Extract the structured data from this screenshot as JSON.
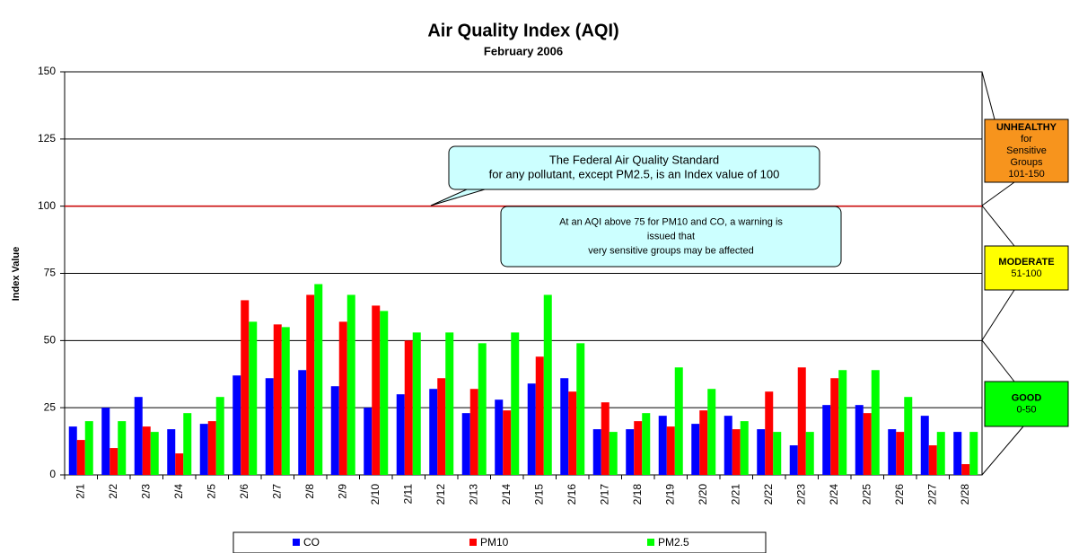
{
  "chart_data": {
    "type": "bar",
    "title": "Air Quality Index  (AQI)",
    "subtitle": "February 2006",
    "y_label": "Index Value",
    "categories": [
      "2/1",
      "2/2",
      "2/3",
      "2/4",
      "2/5",
      "2/6",
      "2/7",
      "2/8",
      "2/9",
      "2/10",
      "2/11",
      "2/12",
      "2/13",
      "2/14",
      "2/15",
      "2/16",
      "2/17",
      "2/18",
      "2/19",
      "2/20",
      "2/21",
      "2/22",
      "2/23",
      "2/24",
      "2/25",
      "2/26",
      "2/27",
      "2/28"
    ],
    "series": [
      {
        "name": "CO",
        "color": "#0000ff",
        "values": [
          18,
          25,
          29,
          17,
          19,
          37,
          36,
          39,
          33,
          25,
          30,
          32,
          23,
          28,
          34,
          36,
          17,
          17,
          22,
          19,
          22,
          17,
          11,
          26,
          26,
          17,
          22,
          16
        ]
      },
      {
        "name": "PM10",
        "color": "#ff0000",
        "values": [
          13,
          10,
          18,
          8,
          20,
          65,
          56,
          67,
          57,
          63,
          50,
          36,
          32,
          24,
          44,
          31,
          27,
          20,
          18,
          24,
          17,
          31,
          40,
          36,
          23,
          16,
          11,
          4
        ]
      },
      {
        "name": "PM2.5",
        "color": "#00ff00",
        "values": [
          20,
          20,
          16,
          23,
          29,
          57,
          55,
          71,
          67,
          61,
          53,
          53,
          49,
          53,
          67,
          49,
          16,
          23,
          40,
          32,
          20,
          16,
          16,
          39,
          39,
          29,
          16,
          16
        ]
      }
    ],
    "ylim": [
      0,
      150
    ],
    "yticks": [
      0,
      25,
      50,
      75,
      100,
      125,
      150
    ],
    "grid": true,
    "reference_line": {
      "value": 100,
      "color": "#cc0000"
    },
    "annotations": [
      {
        "lines": [
          "The Federal Air Quality Standard",
          "for any pollutant, except PM2.5, is an Index value of 100"
        ]
      },
      {
        "lines": [
          "At an AQI above 75 for PM10 and CO, a warning is",
          "issued that",
          "very sensitive groups may be affected"
        ]
      }
    ],
    "bands": [
      {
        "title": "UNHEALTHY",
        "lines": [
          "for",
          "Sensitive",
          "Groups",
          "101-150"
        ],
        "color": "#f7941d"
      },
      {
        "title": "MODERATE",
        "lines": [
          "51-100"
        ],
        "color": "#ffff00"
      },
      {
        "title": "GOOD",
        "lines": [
          "0-50"
        ],
        "color": "#00ff00"
      }
    ]
  }
}
